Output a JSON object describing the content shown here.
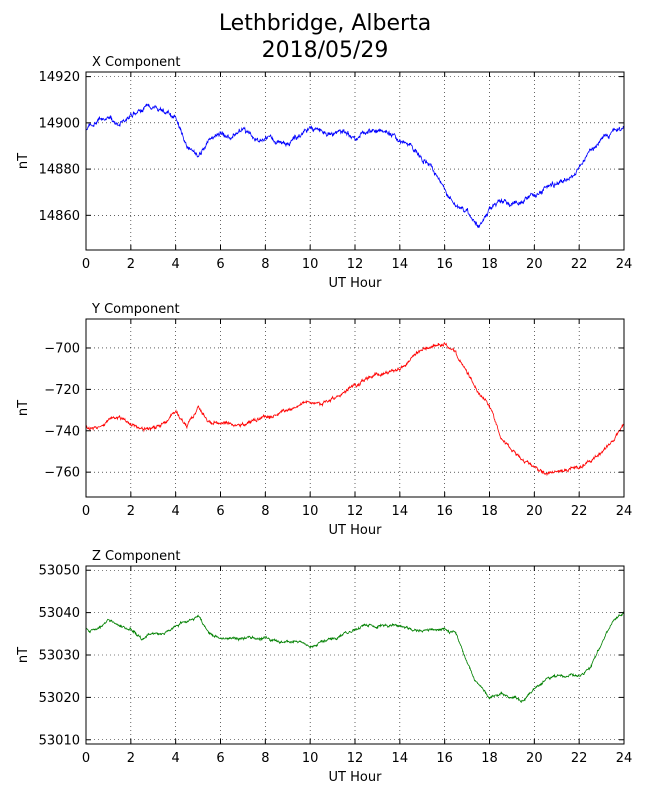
{
  "title": {
    "line1": "Lethbridge, Alberta",
    "line2": "2018/05/29"
  },
  "chart_data": [
    {
      "type": "line",
      "panel_title": "X Component",
      "xlabel": "UT Hour",
      "ylabel": "nT",
      "xlim": [
        0,
        24
      ],
      "ylim": [
        14845,
        14922
      ],
      "xticks": [
        0,
        2,
        4,
        6,
        8,
        10,
        12,
        14,
        16,
        18,
        20,
        22,
        24
      ],
      "yticks": [
        14860,
        14880,
        14900,
        14920
      ],
      "grid": true,
      "series": [
        {
          "color": "#0000ff",
          "x": [
            0,
            0.5,
            1,
            1.5,
            2,
            2.5,
            3,
            3.5,
            4,
            4.5,
            5,
            5.5,
            6,
            6.5,
            7,
            7.5,
            8,
            8.5,
            9,
            9.5,
            10,
            10.5,
            11,
            11.5,
            12,
            12.5,
            13,
            13.5,
            14,
            14.5,
            15,
            15.5,
            16,
            16.5,
            17,
            17.5,
            18,
            18.5,
            19,
            19.5,
            20,
            20.5,
            21,
            21.5,
            22,
            22.5,
            23,
            23.5,
            24
          ],
          "values": [
            14897,
            14900,
            14902,
            14899,
            14903,
            14905,
            14908,
            14905,
            14902,
            14890,
            14886,
            14893,
            14895,
            14894,
            14898,
            14893,
            14893,
            14892,
            14891,
            14894,
            14898,
            14896,
            14895,
            14896,
            14894,
            14896,
            14897,
            14896,
            14893,
            14891,
            14884,
            14879,
            14871,
            14864,
            14861,
            14856,
            14863,
            14866,
            14865,
            14866,
            14869,
            14872,
            14874,
            14876,
            14880,
            14889,
            14893,
            14896,
            14898
          ]
        }
      ]
    },
    {
      "type": "line",
      "panel_title": "Y Component",
      "xlabel": "UT Hour",
      "ylabel": "nT",
      "xlim": [
        0,
        24
      ],
      "ylim": [
        -772,
        -686
      ],
      "xticks": [
        0,
        2,
        4,
        6,
        8,
        10,
        12,
        14,
        16,
        18,
        20,
        22,
        24
      ],
      "yticks": [
        -760,
        -740,
        -720,
        -700
      ],
      "grid": true,
      "series": [
        {
          "color": "#ff0000",
          "x": [
            0,
            0.5,
            1,
            1.5,
            2,
            2.5,
            3,
            3.5,
            4,
            4.5,
            5,
            5.5,
            6,
            6.5,
            7,
            7.5,
            8,
            8.5,
            9,
            9.5,
            10,
            10.5,
            11,
            11.5,
            12,
            12.5,
            13,
            13.5,
            14,
            14.5,
            15,
            15.5,
            16,
            16.5,
            17,
            17.5,
            18,
            18.5,
            19,
            19.5,
            20,
            20.5,
            21,
            21.5,
            22,
            22.5,
            23,
            23.5,
            24
          ],
          "values": [
            -739,
            -738,
            -735,
            -734,
            -737,
            -739,
            -739,
            -736,
            -731,
            -738,
            -729,
            -736,
            -735,
            -737,
            -737,
            -735,
            -733,
            -732,
            -730,
            -728,
            -726,
            -727,
            -724,
            -722,
            -718,
            -715,
            -713,
            -712,
            -710,
            -706,
            -701,
            -699,
            -698,
            -703,
            -712,
            -721,
            -728,
            -742,
            -750,
            -754,
            -757,
            -761,
            -760,
            -759,
            -758,
            -755,
            -750,
            -745,
            -737
          ]
        }
      ]
    },
    {
      "type": "line",
      "panel_title": "Z Component",
      "xlabel": "UT Hour",
      "ylabel": "nT",
      "xlim": [
        0,
        24
      ],
      "ylim": [
        53009,
        53051
      ],
      "xticks": [
        0,
        2,
        4,
        6,
        8,
        10,
        12,
        14,
        16,
        18,
        20,
        22,
        24
      ],
      "yticks": [
        53010,
        53020,
        53030,
        53040,
        53050
      ],
      "grid": true,
      "series": [
        {
          "color": "#008000",
          "x": [
            0,
            0.5,
            1,
            1.5,
            2,
            2.5,
            3,
            3.5,
            4,
            4.5,
            5,
            5.5,
            6,
            6.5,
            7,
            7.5,
            8,
            8.5,
            9,
            9.5,
            10,
            10.5,
            11,
            11.5,
            12,
            12.5,
            13,
            13.5,
            14,
            14.5,
            15,
            15.5,
            16,
            16.5,
            17,
            17.5,
            18,
            18.5,
            19,
            19.5,
            20,
            20.5,
            21,
            21.5,
            22,
            22.5,
            23,
            23.5,
            24
          ],
          "values": [
            53036,
            53036,
            53038,
            53037,
            53036,
            53034,
            53035,
            53035,
            53037,
            53038,
            53039,
            53035,
            53034,
            53034,
            53034,
            53034,
            53034,
            53033,
            53033,
            53033,
            53032,
            53033,
            53034,
            53035,
            53036,
            53037,
            53037,
            53037,
            53037,
            53036,
            53036,
            53036,
            53036,
            53035,
            53028,
            53023,
            53020,
            53021,
            53020,
            53019,
            53022,
            53024,
            53025,
            53025,
            53025,
            53027,
            53033,
            53038,
            53040
          ]
        }
      ]
    }
  ]
}
